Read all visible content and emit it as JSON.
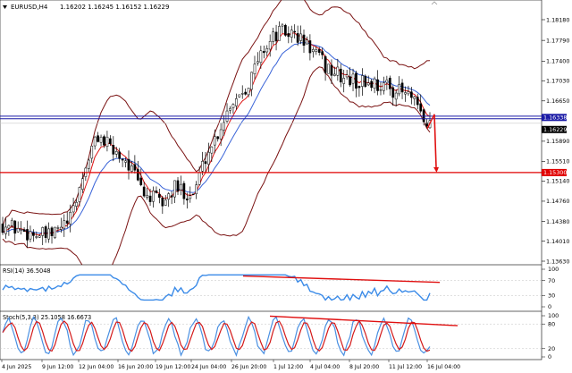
{
  "chart_header": {
    "symbol": "EURUSD,H4",
    "ohlc": "1.16202 1.16245 1.16152 1.16229"
  },
  "price_axis": {
    "labels": [
      "1.18180",
      "1.17790",
      "1.17400",
      "1.17030",
      "1.16650",
      "1.16338",
      "1.16229",
      "1.15890",
      "1.15510",
      "1.15300",
      "1.15140",
      "1.14760",
      "1.14380",
      "1.14010",
      "1.13630"
    ],
    "values": [
      1.1818,
      1.1779,
      1.174,
      1.1703,
      1.1665,
      1.16338,
      1.16229,
      1.1589,
      1.1551,
      1.153,
      1.1514,
      1.1476,
      1.1438,
      1.1401,
      1.1363
    ]
  },
  "levels": {
    "resistance": {
      "value": 1.16338,
      "label": "1.16338",
      "color": "#1a1aa6"
    },
    "bid": {
      "value": 1.16229,
      "label": "1.16229"
    },
    "support": {
      "value": 1.153,
      "label": "1.15300",
      "color": "#e00000"
    }
  },
  "rsi": {
    "header": "RSI(14) 36.5048",
    "scale": [
      "100",
      "70",
      "30",
      "0"
    ]
  },
  "stoch": {
    "header": "Stoch(5,3,3) 25.1058 16.6673",
    "scale": [
      "100",
      "80",
      "20",
      "0"
    ]
  },
  "time_axis": {
    "labels": [
      "4 Jun 2025",
      "9 Jun 12:00",
      "12 Jun 04:00",
      "16 Jun 20:00",
      "19 Jun 12:00",
      "24 Jun 04:00",
      "26 Jun 20:00",
      "1 Jul 12:00",
      "4 Jul 04:00",
      "8 Jul 20:00",
      "11 Jul 12:00",
      "16 Jul 04:00"
    ]
  },
  "colors": {
    "candles": "#000000",
    "bollinger": "#7a1212",
    "ema_fast": "#dd1515",
    "ema_slow": "#3a64d8",
    "rsi_line": "#3b8be8",
    "stoch_main": "#4a90e2",
    "stoch_signal": "#d41a1a",
    "annotation": "#e01010"
  },
  "icons": {
    "dropdown": "triangle-down-icon",
    "scroll": "chevron-up-icon"
  }
}
